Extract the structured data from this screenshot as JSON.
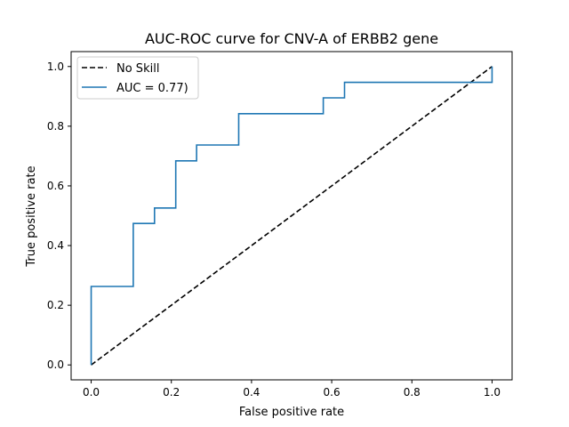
{
  "chart_data": {
    "type": "line",
    "title": "AUC-ROC curve for CNV-A of ERBB2 gene",
    "xlabel": "False positive rate",
    "ylabel": "True positive rate",
    "xlim": [
      -0.05,
      1.05
    ],
    "ylim": [
      -0.05,
      1.05
    ],
    "xticks": [
      0.0,
      0.2,
      0.4,
      0.6,
      0.8,
      1.0
    ],
    "xtick_labels": [
      "0.0",
      "0.2",
      "0.4",
      "0.6",
      "0.8",
      "1.0"
    ],
    "yticks": [
      0.0,
      0.2,
      0.4,
      0.6,
      0.8,
      1.0
    ],
    "ytick_labels": [
      "0.0",
      "0.2",
      "0.4",
      "0.6",
      "0.8",
      "1.0"
    ],
    "grid": false,
    "legend_position": "upper-left",
    "series": [
      {
        "name": "No Skill",
        "color": "#000000",
        "style": "dashed",
        "x": [
          0.0,
          1.0
        ],
        "y": [
          0.0,
          1.0
        ]
      },
      {
        "name": "AUC = 0.77)",
        "color": "#1f77b4",
        "style": "solid",
        "x": [
          0.0,
          0.0,
          0.105,
          0.105,
          0.158,
          0.158,
          0.211,
          0.211,
          0.263,
          0.263,
          0.368,
          0.368,
          0.579,
          0.579,
          0.632,
          0.632,
          1.0,
          1.0
        ],
        "y": [
          0.0,
          0.263,
          0.263,
          0.474,
          0.474,
          0.526,
          0.526,
          0.684,
          0.684,
          0.737,
          0.737,
          0.842,
          0.842,
          0.895,
          0.895,
          0.947,
          0.947,
          1.0
        ]
      }
    ]
  }
}
